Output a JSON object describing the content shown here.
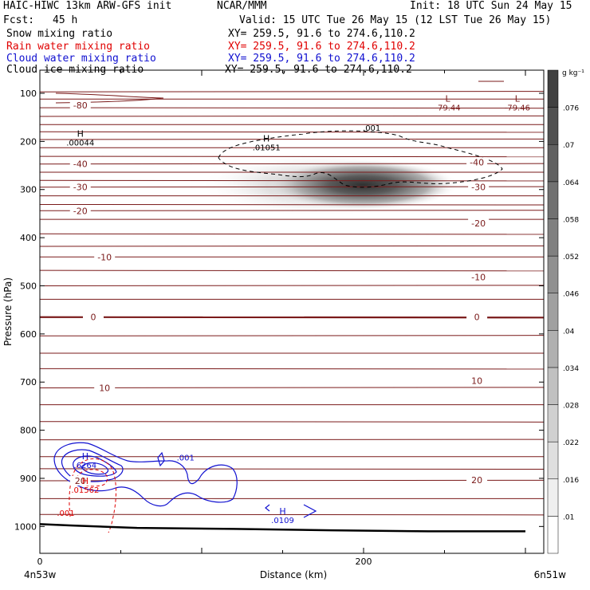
{
  "header": {
    "left_title": "HAIC-HIWC 13km ARW-GFS init",
    "center_org": "NCAR/MMM",
    "init_text": "Init: 18 UTC Sun 24 May 15",
    "fcst_label": "Fcst:",
    "fcst_value": "45 h",
    "valid_text": "Valid: 15 UTC Tue 26 May 15 (12 LST Tue 26 May 15)",
    "fields": [
      {
        "name": "Snow mixing ratio",
        "xy": "XY= 259.5, 91.6 to 274.6,110.2",
        "color": "#000000"
      },
      {
        "name": "Rain water mixing ratio",
        "xy": "XY= 259.5, 91.6 to 274.6,110.2",
        "color": "#e00000"
      },
      {
        "name": "Cloud water mixing ratio",
        "xy": "XY= 259.5, 91.6 to 274.6,110.2",
        "color": "#1010d0"
      },
      {
        "name": "Cloud ice mixing ratio",
        "xy": "XY= 259.5, 91.6 to 274.6,110.2",
        "color": "#000000"
      }
    ]
  },
  "chart_data": {
    "type": "heatmap",
    "xlabel": "Distance (km)",
    "ylabel": "Pressure (hPa)",
    "xlim": [
      0,
      300
    ],
    "ylim": [
      1050,
      75
    ],
    "x_ticks": [
      0,
      200
    ],
    "y_ticks": [
      100,
      200,
      300,
      400,
      500,
      600,
      700,
      800,
      900,
      1000
    ],
    "x_endpoints": [
      "4n53w",
      "6n51w"
    ],
    "colorbar": {
      "unit": "g kg⁻¹",
      "ticks": [
        ".01",
        ".016",
        ".022",
        ".028",
        ".034",
        ".04",
        ".046",
        ".052",
        ".058",
        ".064",
        ".07",
        ".076"
      ]
    },
    "temperature_isotherms": {
      "color": "#7a1a1a",
      "labels": [
        {
          "text": "-80",
          "x": 25,
          "p": 125
        },
        {
          "text": "-40",
          "x": 25,
          "p": 247
        },
        {
          "text": "-30",
          "x": 25,
          "p": 295
        },
        {
          "text": "-20",
          "x": 25,
          "p": 344
        },
        {
          "text": "-10",
          "x": 40,
          "p": 440
        },
        {
          "text": "0",
          "x": 33,
          "p": 565
        },
        {
          "text": "10",
          "x": 40,
          "p": 712
        },
        {
          "text": "20",
          "x": 25,
          "p": 905
        },
        {
          "text": "-40",
          "x": 270,
          "p": 243
        },
        {
          "text": "-30",
          "x": 271,
          "p": 295
        },
        {
          "text": "-20",
          "x": 271,
          "p": 370
        },
        {
          "text": "-10",
          "x": 271,
          "p": 482
        },
        {
          "text": "0",
          "x": 270,
          "p": 565
        },
        {
          "text": "10",
          "x": 270,
          "p": 697
        },
        {
          "text": "20",
          "x": 270,
          "p": 903
        }
      ]
    },
    "extrema_labels": [
      {
        "symbol": "H",
        "value": ".00044",
        "x": 25,
        "p": 190,
        "color": "#000000"
      },
      {
        "symbol": "H",
        "value": ".01051",
        "x": 140,
        "p": 200,
        "color": "#000000"
      },
      {
        "symbol": "L",
        "value": "-79.44",
        "x": 252,
        "p": 117,
        "color": "#7a1a1a"
      },
      {
        "symbol": "L",
        "value": "-79.46",
        "x": 295,
        "p": 117,
        "color": "#7a1a1a"
      },
      {
        "symbol": "H",
        "value": ".6264",
        "x": 28,
        "p": 860,
        "color": "#1010d0"
      },
      {
        "symbol": "H",
        "value": ".01562",
        "x": 28,
        "p": 912,
        "color": "#e00000"
      },
      {
        "symbol": "H",
        "value": ".0109",
        "x": 150,
        "p": 975,
        "color": "#1010d0"
      }
    ],
    "contour_labels": [
      {
        "text": ".001",
        "x": 205,
        "p": 178,
        "color": "#000000"
      },
      {
        "text": ".001",
        "x": 90,
        "p": 863,
        "color": "#1010d0"
      },
      {
        "text": ".001",
        "x": 16,
        "p": 978,
        "color": "#e00000"
      }
    ],
    "snow_max": {
      "x": 200,
      "p": 280,
      "value": 0.07
    },
    "terrain_p": [
      995,
      998,
      1003,
      1005,
      1008,
      1010,
      1010
    ]
  }
}
